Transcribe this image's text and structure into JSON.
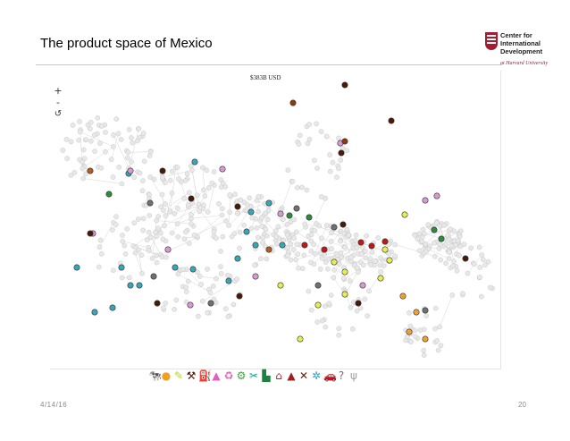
{
  "slide": {
    "title": "The product space of Mexico",
    "date": "4/14/16",
    "page_number": "20"
  },
  "logo": {
    "line1": "Center for",
    "line2": "International",
    "line3": "Development",
    "subline": "at Harvard University",
    "color": "#a51c30"
  },
  "viz": {
    "export_value": "$383B USD",
    "zoom_in": "+",
    "zoom_out": "-",
    "reset": "↺",
    "node_color_inactive": "#e8e8e8",
    "sector_colors": {
      "teal": "#3aa5b4",
      "pink": "#d99ad2",
      "yellow": "#e8ee50",
      "orange": "#f0a030",
      "dark_brown": "#4a1a08",
      "brown": "#8b3a10",
      "green": "#2e8b3c",
      "red": "#c01818",
      "gray": "#707070",
      "rust": "#b85a20"
    }
  },
  "legend": [
    {
      "icon": "livestock-icon",
      "glyph": "🐄",
      "color": "#e8c040"
    },
    {
      "icon": "crops-icon",
      "glyph": "●",
      "color": "#f0a020"
    },
    {
      "icon": "food-icon",
      "glyph": "✎",
      "color": "#c0d020"
    },
    {
      "icon": "mining-icon",
      "glyph": "⚒",
      "color": "#4a1a08"
    },
    {
      "icon": "oil-icon",
      "glyph": "⛽",
      "color": "#d060b0"
    },
    {
      "icon": "chemicals-icon",
      "glyph": "▲",
      "color": "#e060c0"
    },
    {
      "icon": "recycle-icon",
      "glyph": "♻",
      "color": "#e060b0"
    },
    {
      "icon": "construction-icon",
      "glyph": "⚙",
      "color": "#40a040"
    },
    {
      "icon": "textiles-icon",
      "glyph": "✂",
      "color": "#10a080"
    },
    {
      "icon": "footwear-icon",
      "glyph": "▙",
      "color": "#208040"
    },
    {
      "icon": "house-icon",
      "glyph": "⌂",
      "color": "#c02020"
    },
    {
      "icon": "boat-icon",
      "glyph": "▲",
      "color": "#a02020"
    },
    {
      "icon": "tools-icon",
      "glyph": "✕",
      "color": "#602010"
    },
    {
      "icon": "machinery-icon",
      "glyph": "✲",
      "color": "#30a0c0"
    },
    {
      "icon": "car-icon",
      "glyph": "🚗",
      "color": "#30b0c0"
    },
    {
      "icon": "other-icon",
      "glyph": "?",
      "color": "#707070"
    },
    {
      "icon": "services-icon",
      "glyph": "ψ",
      "color": "#a0a0a0"
    }
  ]
}
